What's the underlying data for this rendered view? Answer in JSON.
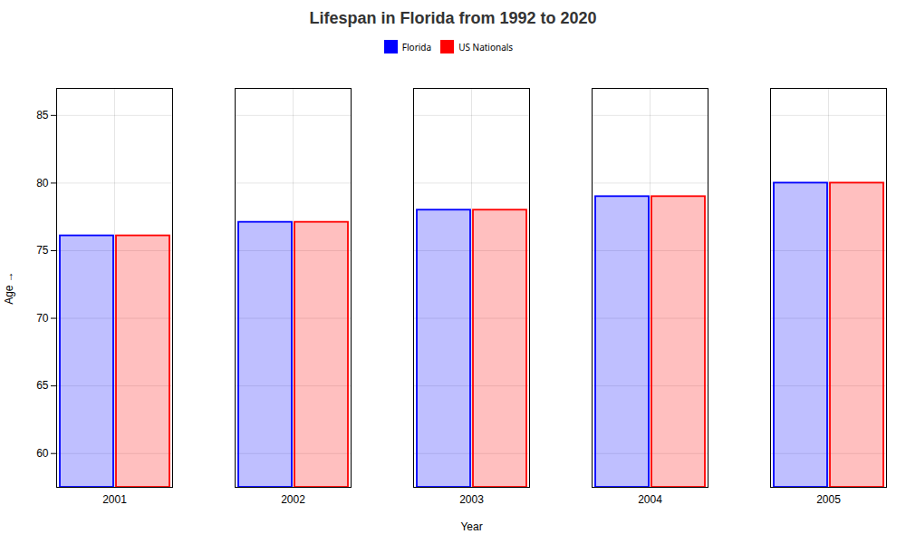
{
  "chart_data": {
    "type": "bar",
    "title": "Lifespan in Florida from 1992 to 2020",
    "x_label": "Year",
    "y_label": "Age",
    "categories": [
      "2001",
      "2002",
      "2003",
      "2004",
      "2005"
    ],
    "series": [
      {
        "name": "Florida",
        "color": "#0000ff",
        "values": [
          76.1,
          77.1,
          78.0,
          79.0,
          80.0
        ]
      },
      {
        "name": "US Nationals",
        "color": "#ff0000",
        "values": [
          76.1,
          77.1,
          78.0,
          79.0,
          80.0
        ]
      }
    ],
    "ylim": [
      57.5,
      87
    ],
    "yticks": [
      60,
      65,
      70,
      75,
      80,
      85
    ],
    "grid": true,
    "legend": "top"
  }
}
